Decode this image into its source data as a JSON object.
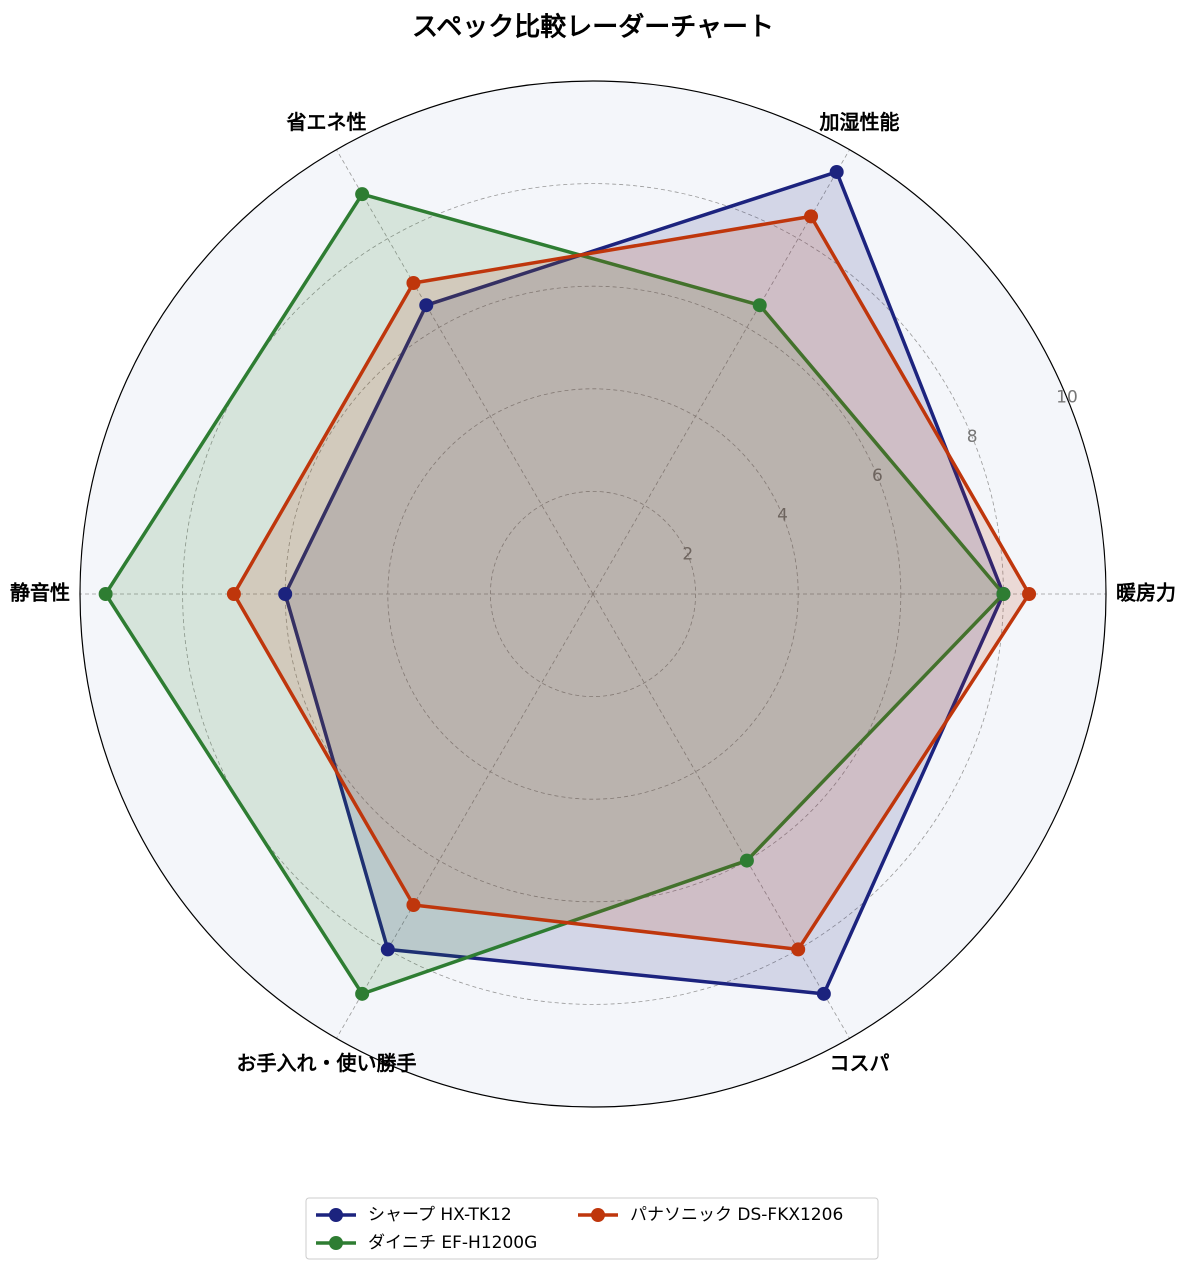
{
  "chart_data": {
    "type": "radar",
    "title": "スペック比較レーダーチャート",
    "categories": [
      "暖房力",
      "加湿性能",
      "省エネ性",
      "静音性",
      "お手入れ・使い勝手",
      "コスパ"
    ],
    "series": [
      {
        "name": "シャープ HX-TK12",
        "color": "#1c237e",
        "values": [
          8,
          9.5,
          6.5,
          6,
          8,
          9
        ]
      },
      {
        "name": "ダイニチ EF-H1200G",
        "color": "#2e7d32",
        "values": [
          8,
          6.5,
          9,
          9.5,
          9,
          6
        ]
      },
      {
        "name": "パナソニック DS-FKX1206",
        "color": "#bf360c",
        "values": [
          8.5,
          8.5,
          7,
          7,
          7,
          8
        ]
      }
    ],
    "ylim": [
      0,
      10
    ],
    "yticks": [
      2,
      4,
      6,
      8,
      10
    ],
    "grid": true,
    "legend": "bottom"
  }
}
